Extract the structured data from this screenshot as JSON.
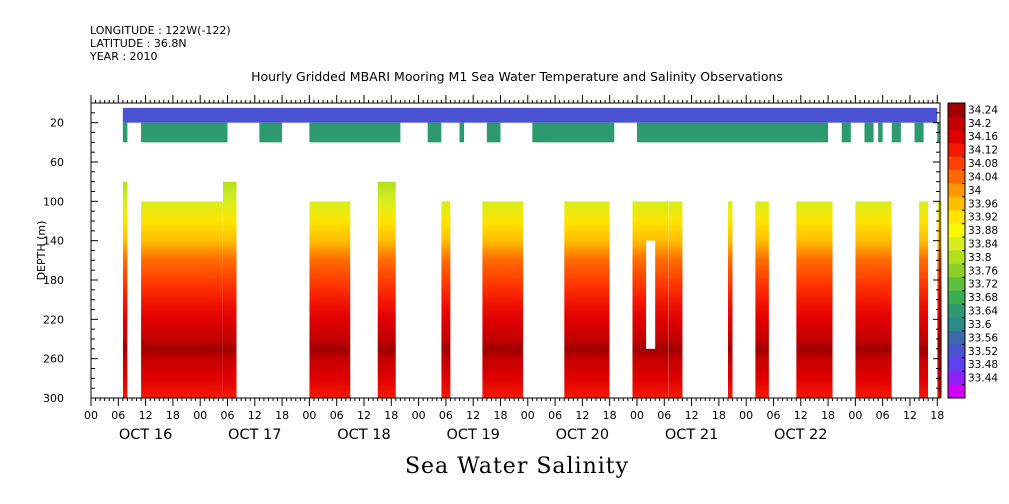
{
  "meta": {
    "longitude": "LONGITUDE : 122W(-122)",
    "latitude": "LATITUDE : 36.8N",
    "year": "YEAR : 2010"
  },
  "chart_data": {
    "type": "heatmap",
    "title": "Hourly Gridded MBARI Mooring M1 Sea Water Temperature and Salinity Observations",
    "variable_label": "Sea Water Salinity",
    "ylabel": "DEPTH (m)",
    "ylim": [
      300,
      0
    ],
    "y_ticks": [
      20,
      60,
      100,
      140,
      180,
      220,
      260,
      300
    ],
    "x_hour_labels": [
      "00",
      "06",
      "12",
      "18",
      "00",
      "06",
      "12",
      "18",
      "00",
      "06",
      "12",
      "18",
      "00",
      "06",
      "12",
      "18",
      "00",
      "06",
      "12",
      "18",
      "00",
      "06",
      "12",
      "18",
      "00",
      "06",
      "12",
      "18",
      "00",
      "06",
      "12",
      "18"
    ],
    "x_day_labels": [
      "OCT 16",
      "OCT 17",
      "OCT 18",
      "OCT 19",
      "OCT 20",
      "OCT 21",
      "OCT 22"
    ],
    "x_range_hours": [
      0,
      186
    ],
    "colorbar_levels": [
      34.24,
      34.2,
      34.16,
      34.12,
      34.08,
      34.04,
      34.0,
      33.96,
      33.92,
      33.88,
      33.84,
      33.8,
      33.76,
      33.72,
      33.68,
      33.64,
      33.6,
      33.56,
      33.52,
      33.48,
      33.44
    ],
    "colorbar_labels": [
      "34.24",
      "34.2",
      "34.16",
      "34.12",
      "34.08",
      "34.04",
      "34",
      "33.96",
      "33.92",
      "33.88",
      "33.84",
      "33.8",
      "33.76",
      "33.72",
      "33.68",
      "33.64",
      "33.6",
      "33.56",
      "33.52",
      "33.48",
      "33.44"
    ],
    "colorbar_colors": [
      "#a00000",
      "#c40000",
      "#e00000",
      "#f41a00",
      "#ff4000",
      "#ff6a00",
      "#ff9600",
      "#ffbe00",
      "#ffe400",
      "#f8f800",
      "#d6ee1e",
      "#b2e01e",
      "#8cd028",
      "#5ec03c",
      "#3cae52",
      "#2c9a6e",
      "#2c8a88",
      "#3a6aa8",
      "#4a52d2",
      "#6040f0",
      "#9020f8",
      "#d000f8"
    ],
    "surface_layer": {
      "depth_range_m": [
        5,
        20
      ],
      "value": 33.53,
      "data_hours_range": [
        7,
        186
      ]
    },
    "shallow_layer": {
      "depth_range_m": [
        20,
        40
      ],
      "value": 33.66,
      "data_segments_hours": [
        [
          7,
          8
        ],
        [
          11,
          30
        ],
        [
          37,
          42
        ],
        [
          48,
          68
        ],
        [
          74,
          77
        ],
        [
          81,
          82
        ],
        [
          87,
          90
        ],
        [
          97,
          115
        ],
        [
          120,
          162
        ],
        [
          165,
          167
        ],
        [
          170,
          172
        ],
        [
          173,
          174
        ],
        [
          176,
          178
        ],
        [
          181,
          183
        ],
        [
          186,
          186
        ]
      ]
    },
    "deep_layer": {
      "depth_range_m": [
        80,
        300
      ],
      "profile_depths_m": [
        80,
        100,
        120,
        140,
        160,
        180,
        200,
        220,
        240,
        250,
        260,
        280,
        300
      ],
      "profile_values": [
        33.8,
        33.84,
        33.92,
        33.98,
        34.04,
        34.08,
        34.12,
        34.16,
        34.2,
        34.24,
        34.2,
        34.16,
        34.14
      ],
      "segments": [
        {
          "hours": [
            7,
            8
          ],
          "top_m": 80
        },
        {
          "hours": [
            11,
            29
          ],
          "top_m": 100
        },
        {
          "hours": [
            29,
            32
          ],
          "top_m": 80
        },
        {
          "hours": [
            48,
            57
          ],
          "top_m": 100
        },
        {
          "hours": [
            63,
            67
          ],
          "top_m": 80
        },
        {
          "hours": [
            77,
            79
          ],
          "top_m": 100
        },
        {
          "hours": [
            86,
            95
          ],
          "top_m": 100
        },
        {
          "hours": [
            104,
            114
          ],
          "top_m": 100
        },
        {
          "hours": [
            119,
            127
          ],
          "top_m": 100
        },
        {
          "hours": [
            127,
            130
          ],
          "top_m": 100
        },
        {
          "hours": [
            140,
            141
          ],
          "top_m": 100
        },
        {
          "hours": [
            146,
            149
          ],
          "top_m": 100
        },
        {
          "hours": [
            155,
            163
          ],
          "top_m": 100
        },
        {
          "hours": [
            168,
            176
          ],
          "top_m": 100
        },
        {
          "hours": [
            182,
            184
          ],
          "top_m": 100
        },
        {
          "hours": [
            186,
            187
          ],
          "top_m": 100
        }
      ],
      "notch_hours_140_250m": [
        122,
        124
      ]
    }
  }
}
